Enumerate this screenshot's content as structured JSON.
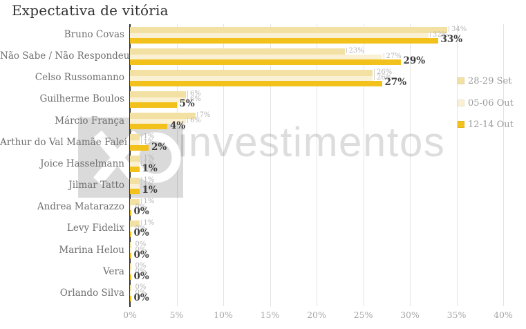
{
  "title": "Expectativa de vitória",
  "watermark": {
    "text": "investimentos"
  },
  "chart_data": {
    "type": "bar",
    "orientation": "horizontal",
    "title": "Expectativa de vitória",
    "categories": [
      "Bruno Covas",
      "Não Sabe / Não Respondeu",
      "Celso Russomanno",
      "Guilherme Boulos",
      "Márcio França",
      "Arthur do Val Mamãe Falei",
      "Joice Hasselmann",
      "Jilmar Tatto",
      "Andrea Matarazzo",
      "Levy Fidelix",
      "Marina Helou",
      "Vera",
      "Orlando Silva"
    ],
    "series": [
      {
        "name": "28-29 Set",
        "color": "#f3e1a3",
        "values": [
          34,
          23,
          26,
          6,
          7,
          1,
          1,
          1,
          1,
          1,
          0,
          0,
          0
        ]
      },
      {
        "name": "05-06 Out",
        "color": "#faf0d3",
        "values": [
          32,
          27,
          26,
          6,
          6,
          1,
          1,
          1,
          0,
          0,
          0,
          0,
          0
        ]
      },
      {
        "name": "12-14 Out",
        "color": "#f2c11c",
        "values": [
          33,
          29,
          27,
          5,
          4,
          2,
          1,
          1,
          0,
          0,
          0,
          0,
          0
        ]
      }
    ],
    "x_ticks": [
      "0%",
      "5%",
      "10%",
      "15%",
      "20%",
      "25%",
      "30%",
      "35%",
      "40%"
    ],
    "xlim": [
      0,
      40
    ],
    "grid": true,
    "legend_position": "right",
    "value_suffix": "%",
    "colors": {
      "axis": "#2d2d2d",
      "gridline": "#e3e3e3",
      "tick_label": "#a6a6a6",
      "category_label": "#6e6e6e",
      "value_label_light": "#b5b5b5",
      "value_label_dark": "#3e3e3e",
      "legend_label": "#9b9b9b",
      "title": "#2f2f2f",
      "watermark": "#dcdcdc"
    }
  }
}
